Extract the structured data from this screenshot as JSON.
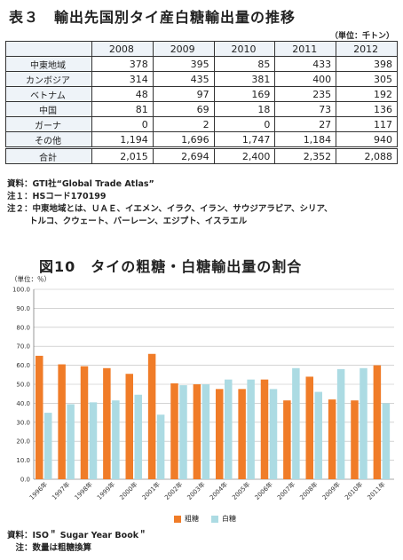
{
  "table_title": "表３　輸出先国別タイ産白糖輸出量の推移",
  "table_unit": "（単位：千トン）",
  "table": {
    "years": [
      "2008",
      "2009",
      "2010",
      "2011",
      "2012"
    ],
    "rows": [
      {
        "label": "中東地域",
        "values": [
          "378",
          "395",
          "85",
          "433",
          "398"
        ]
      },
      {
        "label": "カンボジア",
        "values": [
          "314",
          "435",
          "381",
          "400",
          "305"
        ]
      },
      {
        "label": "ベトナム",
        "values": [
          "48",
          "97",
          "169",
          "235",
          "192"
        ]
      },
      {
        "label": "中国",
        "values": [
          "81",
          "69",
          "18",
          "73",
          "136"
        ]
      },
      {
        "label": "ガーナ",
        "values": [
          "0",
          "2",
          "0",
          "27",
          "117"
        ]
      },
      {
        "label": "その他",
        "values": [
          "1,194",
          "1,696",
          "1,747",
          "1,184",
          "940"
        ]
      }
    ],
    "total": {
      "label": "合計",
      "values": [
        "2,015",
        "2,694",
        "2,400",
        "2,352",
        "2,088"
      ]
    }
  },
  "notes": {
    "source": "資料：GTI社“Global Trade Atlas”",
    "note1": "注１：HSコード170199",
    "note2": "注２：中東地域とは、ＵＡＥ、イエメン、イラク、イラン、サウジアラビア、シリア、",
    "note2_cont": "トルコ、クウェート、バーレーン、エジプト、イスラエル"
  },
  "chart_title": "図10　タイの粗糖・白糖輸出量の割合",
  "chart_unit": "（単位：％）",
  "chart_data": {
    "type": "bar",
    "categories": [
      "1996年",
      "1997年",
      "1998年",
      "1999年",
      "2000年",
      "2001年",
      "2002年",
      "2003年",
      "2004年",
      "2005年",
      "2006年",
      "2007年",
      "2008年",
      "2009年",
      "2010年",
      "2011年"
    ],
    "series": [
      {
        "name": "粗糖",
        "color": "#f07c28",
        "values": [
          65,
          60.5,
          59.5,
          58.5,
          55.5,
          66,
          50.5,
          50,
          47.5,
          47.5,
          52.5,
          41.5,
          54,
          42,
          41.5,
          60
        ]
      },
      {
        "name": "白糖",
        "color": "#acdbe3",
        "values": [
          35,
          39.5,
          40.5,
          41.5,
          44.5,
          34,
          49.5,
          50,
          52.5,
          52.5,
          47.5,
          58.5,
          46,
          58,
          58.5,
          40
        ]
      }
    ],
    "yticks": [
      "0.0",
      "10.0",
      "20.0",
      "30.0",
      "40.0",
      "50.0",
      "60.0",
      "70.0",
      "80.0",
      "90.0",
      "100.0"
    ],
    "ylim": [
      0,
      100
    ],
    "legend": "bottom-center"
  },
  "chart_source": "資料：ISO＂ Sugar Year Book＂",
  "chart_note": "　注：数量は粗糖換算"
}
